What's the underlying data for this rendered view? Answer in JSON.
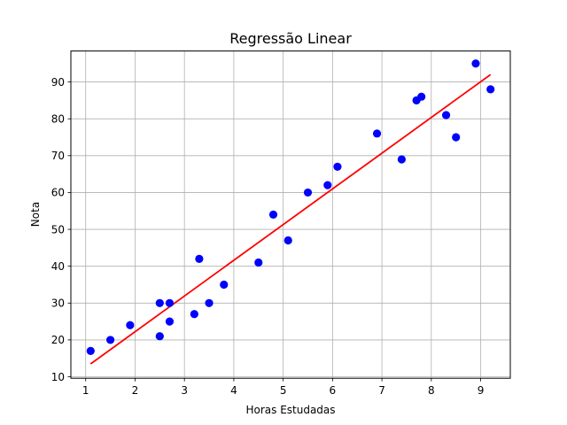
{
  "chart_data": {
    "type": "scatter",
    "title": "Regressão Linear",
    "xlabel": "Horas Estudadas",
    "ylabel": "Nota",
    "xlim": [
      0.7,
      9.6
    ],
    "ylim": [
      9.6,
      98.4
    ],
    "xticks": [
      1,
      2,
      3,
      4,
      5,
      6,
      7,
      8,
      9
    ],
    "yticks": [
      10,
      20,
      30,
      40,
      50,
      60,
      70,
      80,
      90
    ],
    "grid": true,
    "point_color": "#0000ff",
    "line_color": "#ff0000",
    "points": [
      {
        "x": 1.1,
        "y": 17
      },
      {
        "x": 1.5,
        "y": 20
      },
      {
        "x": 1.9,
        "y": 24
      },
      {
        "x": 2.5,
        "y": 30
      },
      {
        "x": 2.5,
        "y": 21
      },
      {
        "x": 2.7,
        "y": 30
      },
      {
        "x": 2.7,
        "y": 25
      },
      {
        "x": 3.2,
        "y": 27
      },
      {
        "x": 3.3,
        "y": 42
      },
      {
        "x": 3.5,
        "y": 30
      },
      {
        "x": 3.8,
        "y": 35
      },
      {
        "x": 4.5,
        "y": 41
      },
      {
        "x": 4.8,
        "y": 54
      },
      {
        "x": 5.1,
        "y": 47
      },
      {
        "x": 5.5,
        "y": 60
      },
      {
        "x": 5.9,
        "y": 62
      },
      {
        "x": 6.1,
        "y": 67
      },
      {
        "x": 6.9,
        "y": 76
      },
      {
        "x": 7.4,
        "y": 69
      },
      {
        "x": 7.7,
        "y": 85
      },
      {
        "x": 7.8,
        "y": 86
      },
      {
        "x": 8.3,
        "y": 81
      },
      {
        "x": 8.5,
        "y": 75
      },
      {
        "x": 8.9,
        "y": 95
      },
      {
        "x": 9.2,
        "y": 88
      }
    ],
    "regression_line": [
      {
        "x": 1.1,
        "y": 13.5
      },
      {
        "x": 9.2,
        "y": 92
      }
    ]
  }
}
